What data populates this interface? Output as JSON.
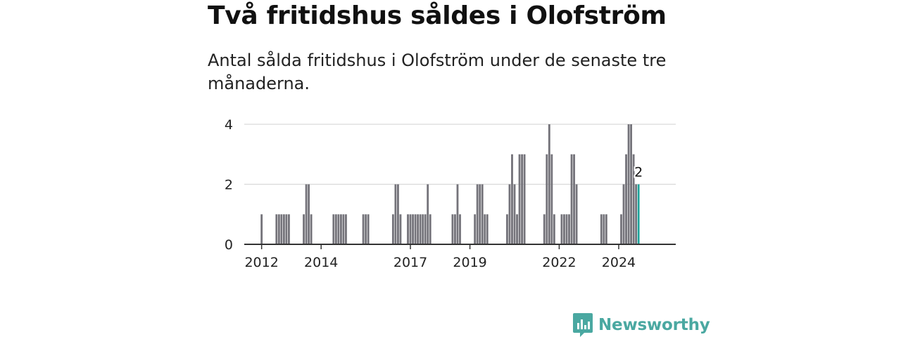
{
  "header": {
    "title": "Två fritidshus såldes i Olofström",
    "subtitle": "Antal sålda fritidshus i Olofström under de senaste tre månaderna."
  },
  "brand": {
    "name": "Newsworthy",
    "icon": "newsworthy-logo-icon",
    "color": "#4aa8a1"
  },
  "colors": {
    "bar": "#74737a",
    "highlight": "#1fa39a",
    "grid": "#d9d9d9",
    "axis": "#333333"
  },
  "chart_data": {
    "type": "bar",
    "title": "",
    "xlabel": "",
    "ylabel": "",
    "ylim": [
      0,
      4
    ],
    "yticks": [
      0,
      2,
      4
    ],
    "xticks": [
      "2012",
      "2014",
      "2017",
      "2019",
      "2022",
      "2024"
    ],
    "x_range": [
      "2011-06",
      "2025-12"
    ],
    "grid": true,
    "highlight_label": "2",
    "series": [
      {
        "name": "",
        "x": [
          "2012-01",
          "2012-07",
          "2012-08",
          "2012-09",
          "2012-10",
          "2012-11",
          "2012-12",
          "2013-06",
          "2013-07",
          "2013-08",
          "2013-09",
          "2014-06",
          "2014-07",
          "2014-08",
          "2014-09",
          "2014-10",
          "2014-11",
          "2015-06",
          "2015-07",
          "2015-08",
          "2016-06",
          "2016-07",
          "2016-08",
          "2016-09",
          "2016-12",
          "2017-01",
          "2017-02",
          "2017-03",
          "2017-04",
          "2017-05",
          "2017-06",
          "2017-07",
          "2017-08",
          "2017-09",
          "2018-06",
          "2018-07",
          "2018-08",
          "2018-09",
          "2019-03",
          "2019-04",
          "2019-05",
          "2019-06",
          "2019-07",
          "2019-08",
          "2020-04",
          "2020-05",
          "2020-06",
          "2020-07",
          "2020-08",
          "2020-09",
          "2020-10",
          "2020-11",
          "2021-07",
          "2021-08",
          "2021-09",
          "2021-10",
          "2021-11",
          "2022-02",
          "2022-03",
          "2022-04",
          "2022-05",
          "2022-06",
          "2022-07",
          "2022-08",
          "2023-06",
          "2023-07",
          "2023-08",
          "2024-02",
          "2024-03",
          "2024-04",
          "2024-05",
          "2024-06",
          "2024-07",
          "2024-08",
          "2024-09"
        ],
        "values": [
          1,
          1,
          1,
          1,
          1,
          1,
          1,
          1,
          2,
          2,
          1,
          1,
          1,
          1,
          1,
          1,
          1,
          1,
          1,
          1,
          1,
          2,
          2,
          1,
          1,
          1,
          1,
          1,
          1,
          1,
          1,
          1,
          2,
          1,
          1,
          1,
          2,
          1,
          1,
          2,
          2,
          2,
          1,
          1,
          1,
          2,
          3,
          2,
          1,
          3,
          3,
          3,
          1,
          3,
          4,
          3,
          1,
          1,
          1,
          1,
          1,
          3,
          3,
          2,
          1,
          1,
          1,
          1,
          2,
          3,
          4,
          4,
          3,
          2,
          2
        ]
      }
    ]
  }
}
